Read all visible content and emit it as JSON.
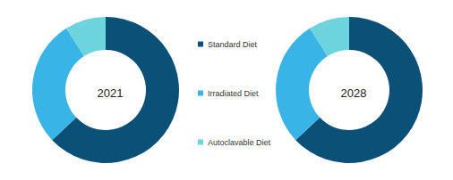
{
  "chart_data": [
    {
      "type": "pie",
      "title": "2021",
      "categories": [
        "Standard Diet",
        "Irradiated Diet",
        "Autoclavable Diet"
      ],
      "values": [
        63,
        28,
        9
      ],
      "colors": [
        "#0b5077",
        "#38b5e6",
        "#6dd3dc"
      ],
      "legend": "center"
    },
    {
      "type": "pie",
      "title": "2028",
      "categories": [
        "Standard Diet",
        "Irradiated Diet",
        "Autoclavable Diet"
      ],
      "values": [
        63,
        28,
        9
      ],
      "colors": [
        "#0b5077",
        "#38b5e6",
        "#6dd3dc"
      ],
      "legend": "center"
    }
  ]
}
